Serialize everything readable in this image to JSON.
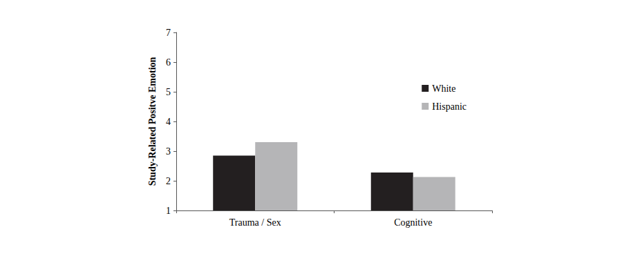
{
  "chart_data": {
    "type": "bar",
    "y_label": "Study-Related Positve Emotion",
    "categories": [
      "Trauma / Sex",
      "Cognitive"
    ],
    "series": [
      {
        "name": "White",
        "color": "#231f20",
        "values": [
          2.85,
          2.28
        ]
      },
      {
        "name": "Hispanic",
        "color": "#b5b5b7",
        "values": [
          3.3,
          2.13
        ]
      }
    ],
    "ylim": [
      1,
      7
    ],
    "yticks": [
      1,
      2,
      3,
      4,
      5,
      6,
      7
    ],
    "grid": false,
    "legend": "upper right"
  }
}
